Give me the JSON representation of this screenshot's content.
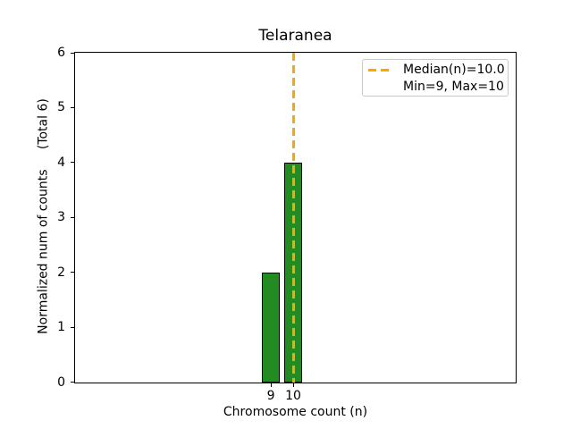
{
  "chart_data": {
    "type": "bar",
    "title": "Telaranea",
    "xlabel": "Chromosome count (n)",
    "ylabel": "Normalized num of counts     (Total 6)",
    "categories": [
      9,
      10
    ],
    "values": [
      2,
      4
    ],
    "total": 6,
    "xticks": [
      9,
      10
    ],
    "yticks": [
      0,
      1,
      2,
      3,
      4,
      5,
      6
    ],
    "xlim": [
      0.2,
      20.0
    ],
    "ylim": [
      0,
      6
    ],
    "bar_width_units": 0.8,
    "grid": false,
    "median_line": {
      "x": 10.0,
      "style": "dashed",
      "label": "Median(n)=10.0"
    },
    "stats": {
      "median": 10.0,
      "min": 9,
      "max": 10
    },
    "legend": {
      "position": "upper right",
      "entries": [
        {
          "label": "Median(n)=10.0",
          "handle": "dashed-line"
        },
        {
          "label": "Min=9, Max=10",
          "handle": "none"
        }
      ]
    },
    "colors": {
      "bar_fill": "#228B22",
      "bar_edge": "#000000",
      "median_line": "#FFA500",
      "legend_border": "#c9c9c9",
      "text": "#000000",
      "background": "#ffffff"
    }
  }
}
